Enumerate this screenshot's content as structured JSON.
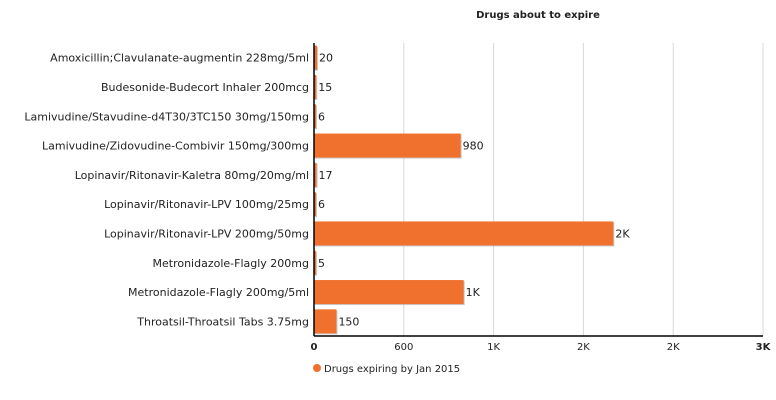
{
  "chart_data": {
    "type": "bar",
    "orientation": "horizontal",
    "title": "Drugs about to expire",
    "categories": [
      "Amoxicillin;Clavulanate-augmentin 228mg/5ml",
      "Budesonide-Budecort Inhaler 200mcg",
      "Lamivudine/Stavudine-d4T30/3TC150 30mg/150mg",
      "Lamivudine/Zidovudine-Combivir 150mg/300mg",
      "Lopinavir/Ritonavir-Kaletra 80mg/20mg/ml",
      "Lopinavir/Ritonavir-LPV 100mg/25mg",
      "Lopinavir/Ritonavir-LPV 200mg/50mg",
      "Metronidazole-Flagly 200mg",
      "Metronidazole-Flagly 200mg/5ml",
      "Throatsil-Throatsil Tabs 3.75mg"
    ],
    "series": [
      {
        "name": "Drugs expiring by Jan 2015",
        "values": [
          20,
          15,
          6,
          980,
          17,
          6,
          2000,
          5,
          1000,
          150
        ],
        "data_labels": [
          "20",
          "15",
          "6",
          "980",
          "17",
          "6",
          "2K",
          "5",
          "1K",
          "150"
        ]
      }
    ],
    "xlim": [
      0,
      3000
    ],
    "x_ticks": [
      0,
      600,
      1200,
      1800,
      2400,
      3000
    ],
    "x_tick_labels": [
      "0",
      "600",
      "1K",
      "2K",
      "2K",
      "3K"
    ],
    "grid": true,
    "legend": "bottom-left",
    "bar_color": "#f0702d"
  }
}
